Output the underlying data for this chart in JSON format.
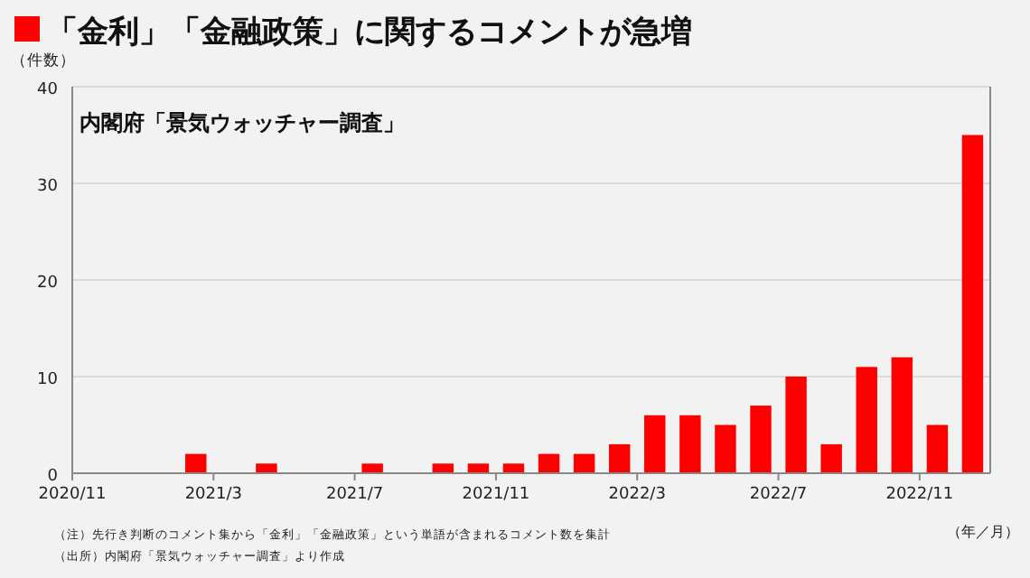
{
  "chart_data": {
    "type": "bar",
    "title": "「金利」「金融政策」に関するコメントが急増",
    "subtitle": "内閣府「景気ウォッチャー調査」",
    "ylabel": "（件数）",
    "xlabel": "（年／月）",
    "annotations": [
      "（注）先行き判断のコメント集から「金利」「金融政策」という単語が含まれるコメント数を集計",
      "（出所）内閣府「景気ウォッチャー調査」より作成"
    ],
    "categories": [
      "2020/11",
      null,
      null,
      null,
      "2021/3",
      null,
      null,
      null,
      "2021/7",
      null,
      null,
      null,
      "2021/11",
      null,
      null,
      null,
      "2022/3",
      null,
      null,
      null,
      "2022/7",
      null,
      null,
      null,
      "2022/11",
      null
    ],
    "values": [
      0,
      0,
      0,
      2,
      0,
      1,
      0,
      0,
      1,
      0,
      1,
      1,
      1,
      2,
      2,
      3,
      6,
      6,
      5,
      7,
      10,
      3,
      11,
      12,
      5,
      35
    ],
    "color": "#ff0000",
    "ylim": [
      0,
      40
    ],
    "yticks": [
      0,
      10,
      20,
      30,
      40
    ],
    "grid": "y"
  }
}
